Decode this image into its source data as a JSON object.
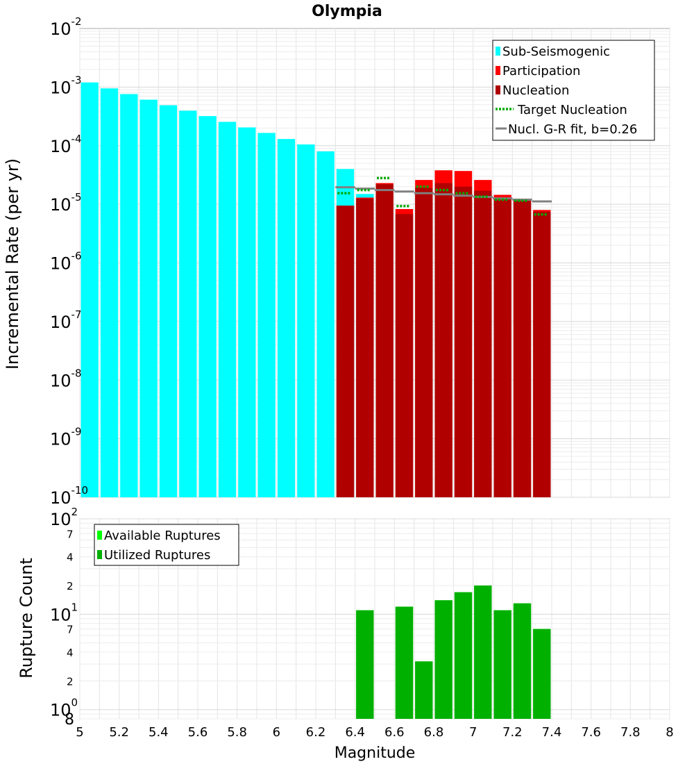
{
  "chart_data": [
    {
      "type": "bar",
      "title": "Olympia",
      "xlabel": "",
      "ylabel": "Incremental Rate (per yr)",
      "yscale": "log",
      "xlim": [
        5,
        8
      ],
      "ylim": [
        1e-10,
        0.01
      ],
      "y_tick_labels": [
        "10^-10",
        "10^-9",
        "10^-8",
        "10^-7",
        "10^-6",
        "10^-5",
        "10^-4",
        "10^-3",
        "10^-2"
      ],
      "grid": true,
      "legend_position": "top-right",
      "legend": [
        "Sub-Seismogenic",
        "Participation",
        "Nucleation",
        "Target Nucleation",
        "Nucl. G-R fit, b=0.26"
      ],
      "colors": {
        "sub_seismogenic": "#00ffff",
        "participation": "#ff0000",
        "nucleation": "#b00000",
        "target": "#00aa00",
        "gr_fit": "#808080"
      },
      "series": [
        {
          "name": "Sub-Seismogenic",
          "kind": "bar",
          "x": [
            5.05,
            5.15,
            5.25,
            5.35,
            5.45,
            5.55,
            5.65,
            5.75,
            5.85,
            5.95,
            6.05,
            6.15,
            6.25,
            6.35,
            6.45
          ],
          "values": [
            0.0012,
            0.00095,
            0.00076,
            0.00061,
            0.00049,
            0.000395,
            0.00032,
            0.000255,
            0.000205,
            0.000165,
            0.00013,
            0.000105,
            8e-05,
            4e-05,
            1.5e-05
          ]
        },
        {
          "name": "Participation",
          "kind": "bar",
          "x": [
            6.35,
            6.45,
            6.55,
            6.65,
            6.75,
            6.85,
            6.95,
            7.05,
            7.15,
            7.25,
            7.35
          ],
          "values": [
            9.5e-06,
            1.3e-05,
            2.3e-05,
            8.3e-06,
            2.6e-05,
            3.8e-05,
            3.7e-05,
            2.6e-05,
            1.45e-05,
            1.25e-05,
            8e-06
          ]
        },
        {
          "name": "Nucleation",
          "kind": "bar",
          "x": [
            6.35,
            6.45,
            6.55,
            6.65,
            6.75,
            6.85,
            6.95,
            7.05,
            7.15,
            7.25,
            7.35
          ],
          "values": [
            9.5e-06,
            1.25e-05,
            2.2e-05,
            6.8e-06,
            1.9e-05,
            2.3e-05,
            2e-05,
            1.7e-05,
            1.3e-05,
            1.2e-05,
            7.5e-06
          ]
        },
        {
          "name": "Target Nucleation",
          "kind": "step",
          "x": [
            6.35,
            6.45,
            6.55,
            6.65,
            6.75,
            6.85,
            6.95,
            7.05,
            7.15,
            7.25,
            7.35
          ],
          "values": [
            1.55e-05,
            1.75e-05,
            2.8e-05,
            9.3e-06,
            2e-05,
            1.75e-05,
            1.55e-05,
            1.35e-05,
            1.2e-05,
            1.15e-05,
            6.7e-06
          ]
        },
        {
          "name": "Nucl. G-R fit, b=0.26",
          "kind": "step",
          "x": [
            6.35,
            6.45,
            6.55,
            6.65,
            6.75,
            6.85,
            6.95,
            7.05,
            7.15,
            7.25,
            7.35
          ],
          "values": [
            1.95e-05,
            1.85e-05,
            1.75e-05,
            1.65e-05,
            1.55e-05,
            1.48e-05,
            1.4e-05,
            1.33e-05,
            1.26e-05,
            1.2e-05,
            1.12e-05
          ]
        }
      ]
    },
    {
      "type": "bar",
      "title": "",
      "xlabel": "Magnitude",
      "ylabel": "Rupture Count",
      "yscale": "log",
      "xlim": [
        5,
        8
      ],
      "ylim": [
        0.8,
        100
      ],
      "x_tick_labels": [
        "5",
        "5.2",
        "5.4",
        "5.6",
        "5.8",
        "6",
        "6.2",
        "6.4",
        "6.6",
        "6.8",
        "7",
        "7.2",
        "7.4",
        "7.6",
        "7.8",
        "8"
      ],
      "y_major_ticks": [
        {
          "value": 1,
          "base": "10",
          "exp": "0"
        },
        {
          "value": 10,
          "base": "10",
          "exp": "1"
        },
        {
          "value": 100,
          "base": "10",
          "exp": "2"
        }
      ],
      "y_minor_ticks": [
        {
          "value": 0.8,
          "label": "8"
        },
        {
          "value": 2,
          "label": "2"
        },
        {
          "value": 4,
          "label": "4"
        },
        {
          "value": 7,
          "label": "7"
        },
        {
          "value": 20,
          "label": "2"
        },
        {
          "value": 40,
          "label": "4"
        },
        {
          "value": 70,
          "label": "7"
        }
      ],
      "grid": true,
      "legend_position": "top-left",
      "legend": [
        "Available Ruptures",
        "Utilized Ruptures"
      ],
      "colors": {
        "available": "#00ff00",
        "utilized": "#00b000"
      },
      "series": [
        {
          "name": "Available Ruptures",
          "x": [
            6.45,
            6.65,
            6.75,
            6.85,
            6.95,
            7.05,
            7.15,
            7.25,
            7.35
          ],
          "values": [
            11,
            12,
            3.2,
            14,
            17,
            20,
            11,
            13,
            7
          ]
        },
        {
          "name": "Utilized Ruptures",
          "x": [
            6.45,
            6.65,
            6.75,
            6.85,
            6.95,
            7.05,
            7.15,
            7.25,
            7.35
          ],
          "values": [
            11,
            12,
            3.2,
            14,
            17,
            20,
            11,
            13,
            7
          ]
        }
      ]
    }
  ]
}
